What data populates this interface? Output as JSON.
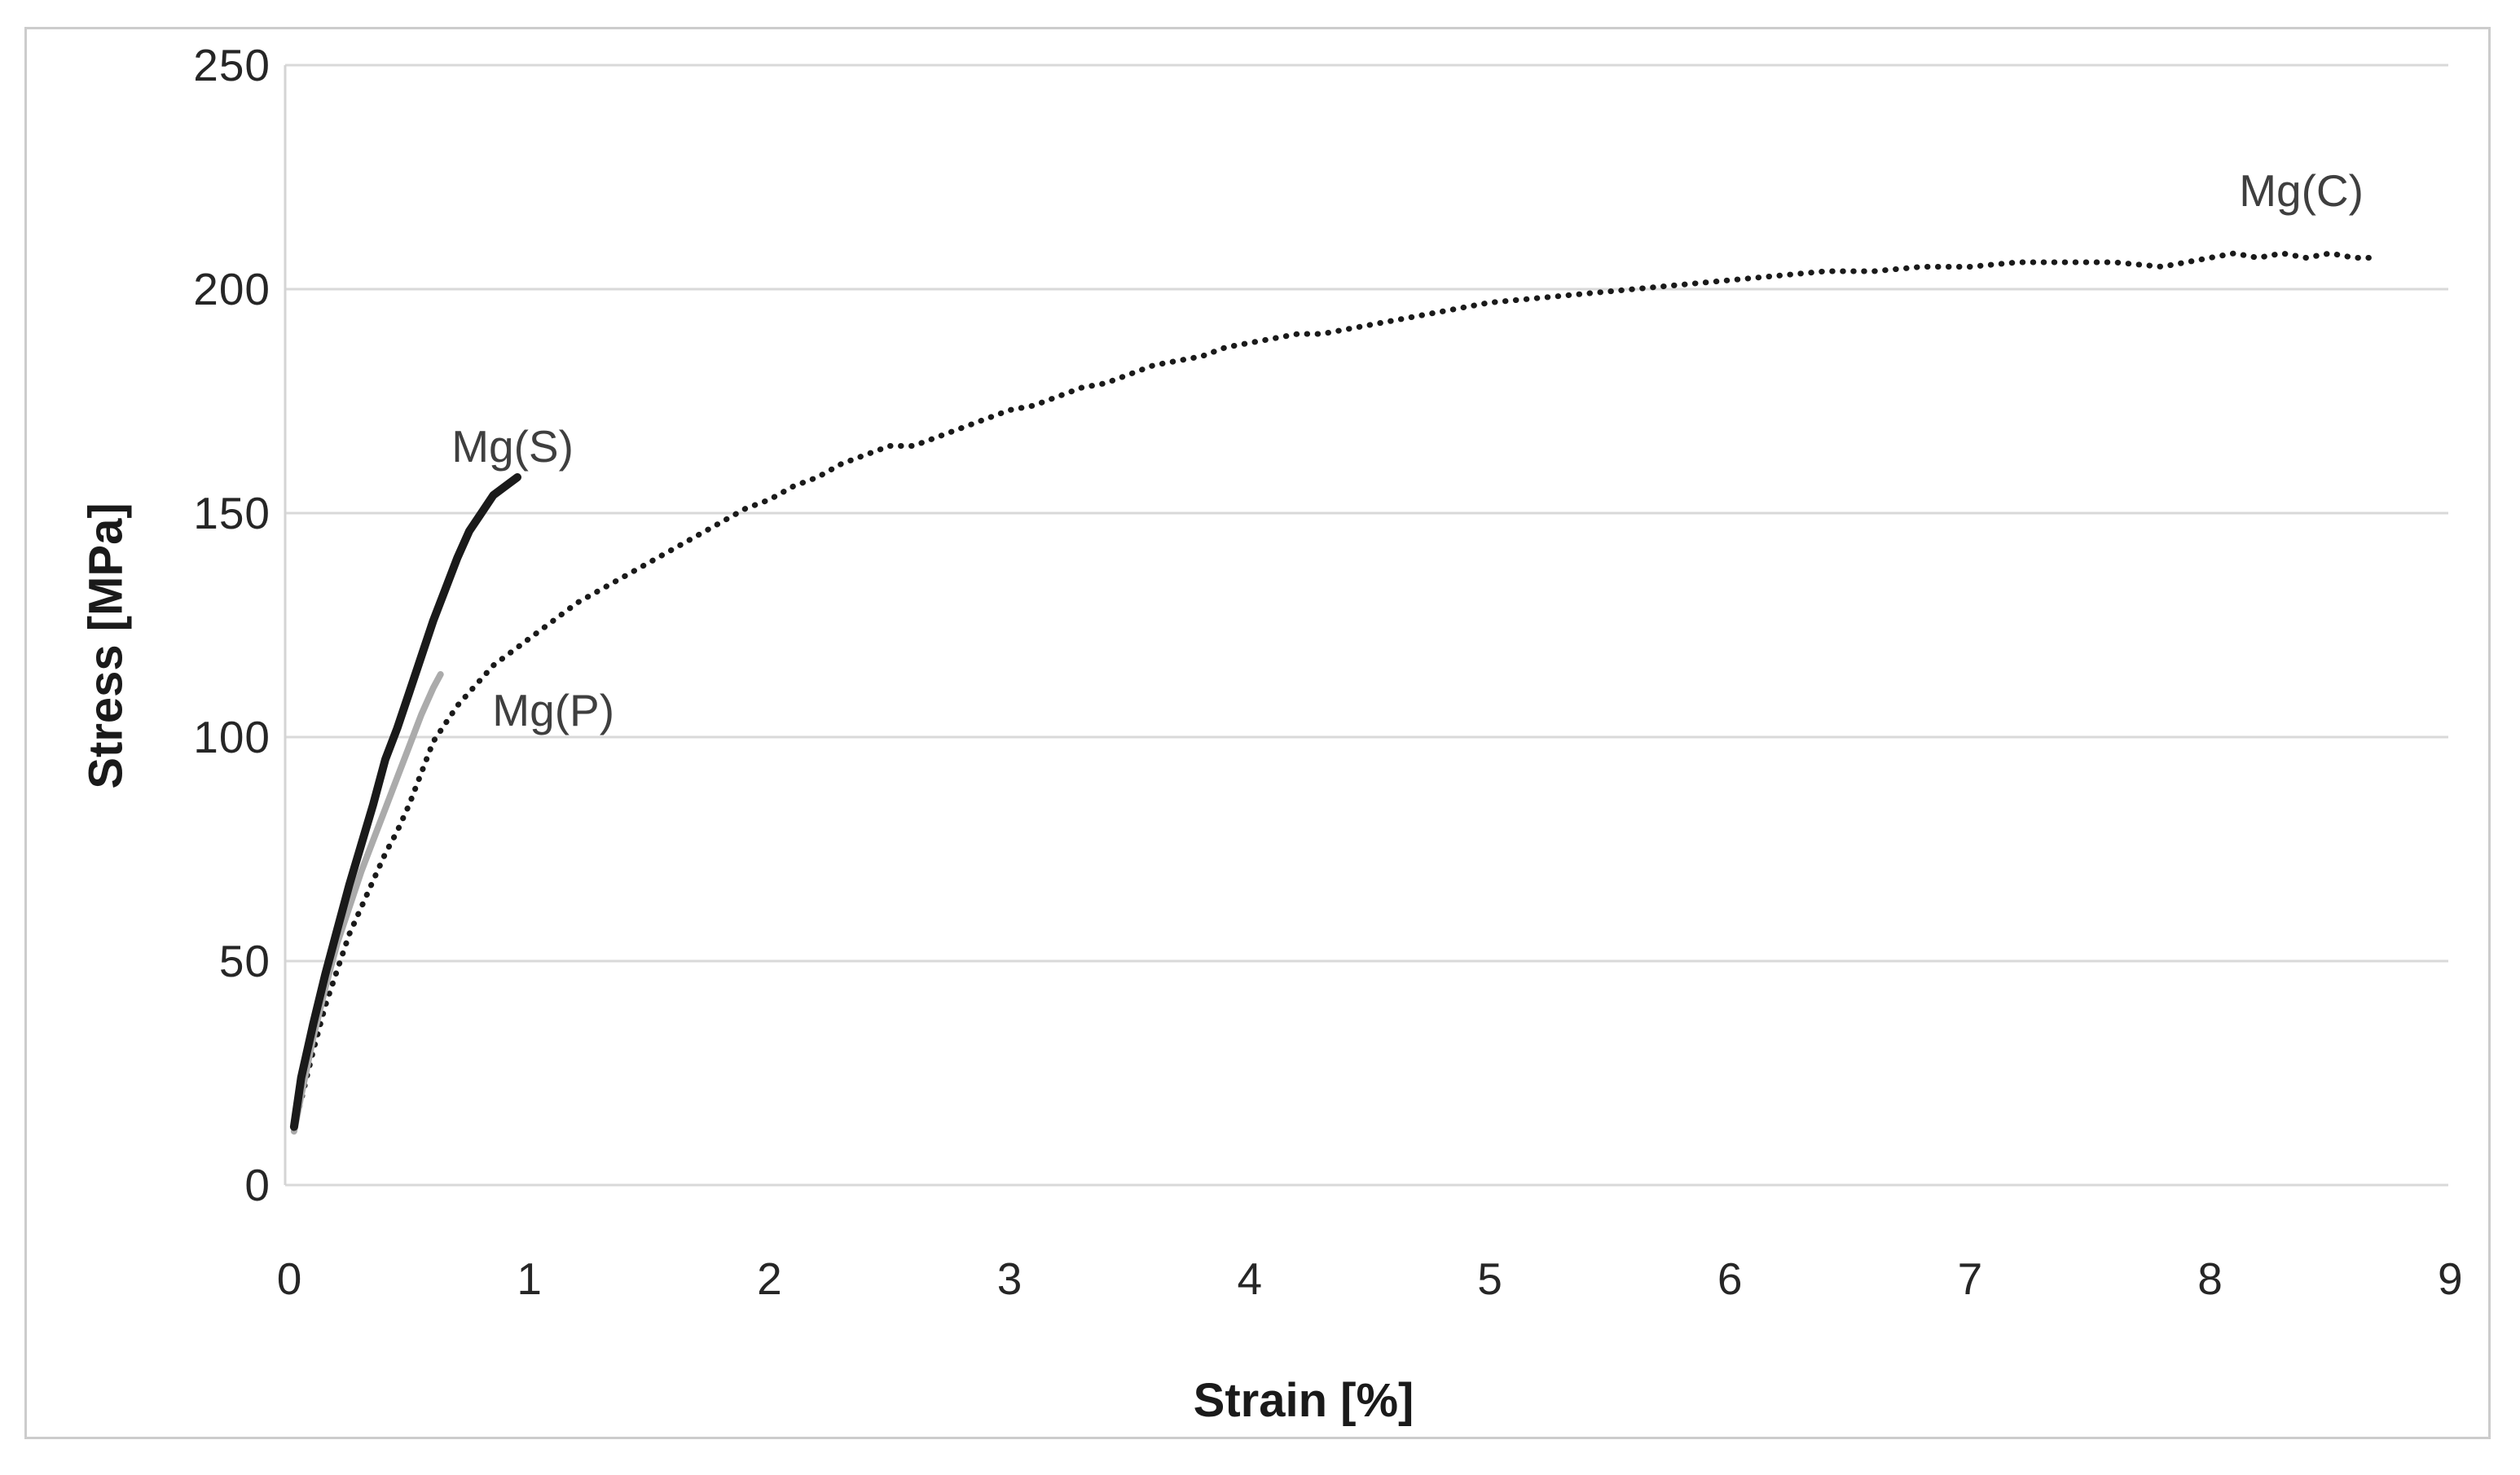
{
  "figure": {
    "background_color": "#ffffff",
    "frame_border_color": "#cccccc"
  },
  "chart_data": {
    "type": "line",
    "title": "",
    "xlabel": "Strain [%]",
    "ylabel": "Stress [MPa]",
    "xlim": [
      0,
      9
    ],
    "ylim": [
      0,
      250
    ],
    "x_ticks": [
      0,
      1,
      2,
      3,
      4,
      5,
      6,
      7,
      8,
      9
    ],
    "y_ticks": [
      0,
      50,
      100,
      150,
      200,
      250
    ],
    "grid": "horizontal-only",
    "gridline_color": "#d9d9d9",
    "axis_line_color": "#d4d4d4",
    "tick_label_color": "#262626",
    "axis_title_color": "#1a1a1a",
    "legend": "inline-annotations",
    "series": [
      {
        "name": "Mg(C)",
        "style": "dotted",
        "color": "#1a1a1a",
        "stroke_width": 7,
        "label_pos": [
          8.38,
          222
        ],
        "points": [
          [
            0.02,
            13
          ],
          [
            0.05,
            19
          ],
          [
            0.1,
            30
          ],
          [
            0.15,
            40
          ],
          [
            0.2,
            48
          ],
          [
            0.25,
            56
          ],
          [
            0.3,
            62
          ],
          [
            0.35,
            68
          ],
          [
            0.4,
            74
          ],
          [
            0.45,
            79
          ],
          [
            0.5,
            85
          ],
          [
            0.55,
            92
          ],
          [
            0.6,
            99
          ],
          [
            0.65,
            103
          ],
          [
            0.7,
            107
          ],
          [
            0.75,
            110
          ],
          [
            0.8,
            113
          ],
          [
            0.85,
            116
          ],
          [
            0.9,
            118
          ],
          [
            0.95,
            120
          ],
          [
            1.0,
            122
          ],
          [
            1.1,
            126
          ],
          [
            1.2,
            130
          ],
          [
            1.3,
            133
          ],
          [
            1.4,
            136
          ],
          [
            1.5,
            139
          ],
          [
            1.6,
            142
          ],
          [
            1.7,
            145
          ],
          [
            1.8,
            148
          ],
          [
            1.9,
            151
          ],
          [
            2.0,
            153
          ],
          [
            2.1,
            156
          ],
          [
            2.2,
            158
          ],
          [
            2.3,
            161
          ],
          [
            2.4,
            163
          ],
          [
            2.5,
            165
          ],
          [
            2.6,
            165
          ],
          [
            2.7,
            167
          ],
          [
            2.8,
            169
          ],
          [
            2.9,
            171
          ],
          [
            3.0,
            173
          ],
          [
            3.1,
            174
          ],
          [
            3.2,
            176
          ],
          [
            3.3,
            178
          ],
          [
            3.4,
            179
          ],
          [
            3.5,
            181
          ],
          [
            3.6,
            183
          ],
          [
            3.7,
            184
          ],
          [
            3.8,
            185
          ],
          [
            3.9,
            187
          ],
          [
            4.0,
            188
          ],
          [
            4.1,
            189
          ],
          [
            4.2,
            190
          ],
          [
            4.3,
            190
          ],
          [
            4.4,
            191
          ],
          [
            4.5,
            192
          ],
          [
            4.6,
            193
          ],
          [
            4.7,
            194
          ],
          [
            4.8,
            195
          ],
          [
            4.9,
            196
          ],
          [
            5.0,
            197
          ],
          [
            5.2,
            198
          ],
          [
            5.4,
            199
          ],
          [
            5.6,
            200
          ],
          [
            5.8,
            201
          ],
          [
            6.0,
            202
          ],
          [
            6.2,
            203
          ],
          [
            6.4,
            204
          ],
          [
            6.6,
            204
          ],
          [
            6.8,
            205
          ],
          [
            7.0,
            205
          ],
          [
            7.2,
            206
          ],
          [
            7.4,
            206
          ],
          [
            7.6,
            206
          ],
          [
            7.8,
            205
          ],
          [
            8.0,
            207
          ],
          [
            8.1,
            208
          ],
          [
            8.2,
            207
          ],
          [
            8.3,
            208
          ],
          [
            8.4,
            207
          ],
          [
            8.5,
            208
          ],
          [
            8.6,
            207
          ],
          [
            8.7,
            207
          ]
        ]
      },
      {
        "name": "Mg(P)",
        "style": "solid",
        "color": "#ababab",
        "stroke_width": 8,
        "label_pos": [
          1.1,
          106
        ],
        "points": [
          [
            0.02,
            12
          ],
          [
            0.05,
            20
          ],
          [
            0.1,
            33
          ],
          [
            0.15,
            44
          ],
          [
            0.2,
            54
          ],
          [
            0.25,
            62
          ],
          [
            0.3,
            70
          ],
          [
            0.35,
            77
          ],
          [
            0.4,
            84
          ],
          [
            0.45,
            91
          ],
          [
            0.5,
            98
          ],
          [
            0.55,
            105
          ],
          [
            0.6,
            111
          ],
          [
            0.63,
            114
          ]
        ]
      },
      {
        "name": "Mg(S)",
        "style": "solid",
        "color": "#1a1a1a",
        "stroke_width": 10,
        "label_pos": [
          0.93,
          165
        ],
        "points": [
          [
            0.02,
            13
          ],
          [
            0.05,
            24
          ],
          [
            0.1,
            36
          ],
          [
            0.15,
            47
          ],
          [
            0.2,
            57
          ],
          [
            0.25,
            67
          ],
          [
            0.3,
            76
          ],
          [
            0.35,
            85
          ],
          [
            0.4,
            95
          ],
          [
            0.45,
            102
          ],
          [
            0.5,
            110
          ],
          [
            0.55,
            118
          ],
          [
            0.6,
            126
          ],
          [
            0.65,
            133
          ],
          [
            0.7,
            140
          ],
          [
            0.75,
            146
          ],
          [
            0.8,
            150
          ],
          [
            0.85,
            154
          ],
          [
            0.9,
            156
          ],
          [
            0.95,
            158
          ]
        ]
      }
    ]
  }
}
